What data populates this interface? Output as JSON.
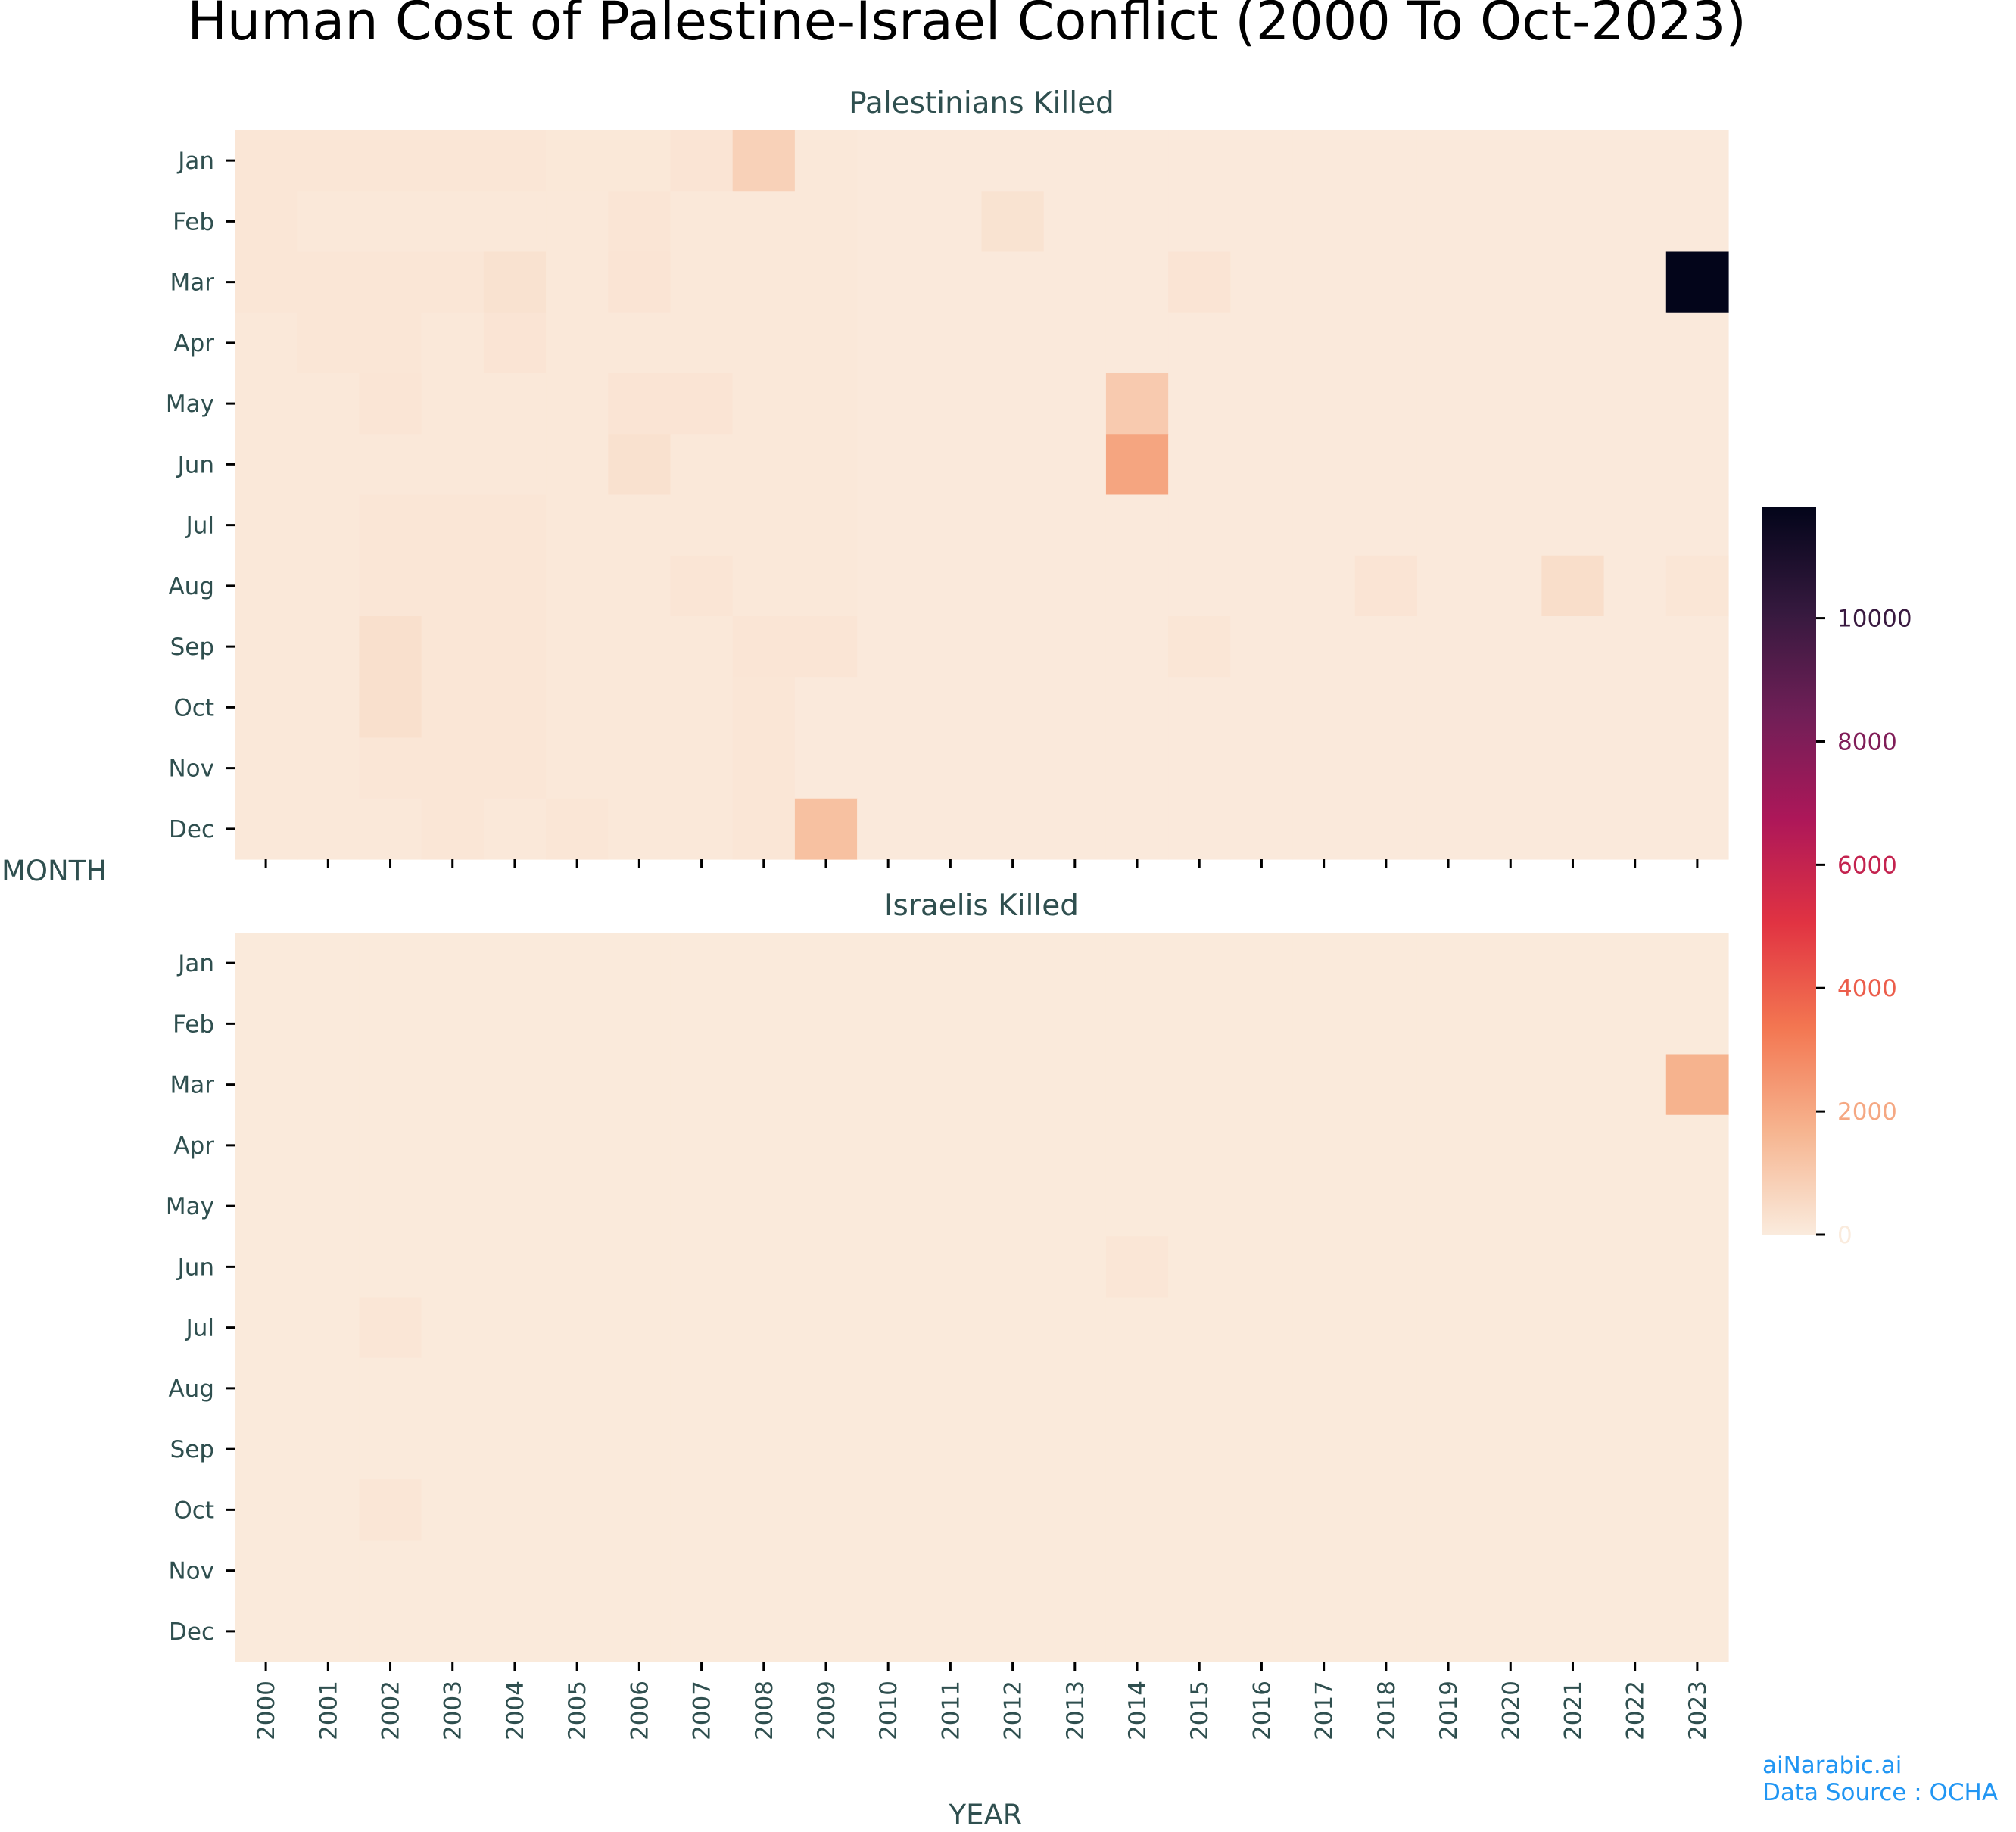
{
  "chart_data": {
    "type": "heatmap",
    "title": "Human Cost of Palestine-Israel Conflict (2000 To Oct-2023)",
    "xlabel": "YEAR",
    "ylabel": "MONTH",
    "x_categories": [
      "2000",
      "2001",
      "2002",
      "2003",
      "2004",
      "2005",
      "2006",
      "2007",
      "2008",
      "2009",
      "2010",
      "2011",
      "2012",
      "2013",
      "2014",
      "2015",
      "2016",
      "2017",
      "2018",
      "2019",
      "2020",
      "2021",
      "2022",
      "2023"
    ],
    "y_categories": [
      "Jan",
      "Feb",
      "Mar",
      "Apr",
      "May",
      "Jun",
      "Jul",
      "Aug",
      "Sep",
      "Oct",
      "Nov",
      "Dec"
    ],
    "panels": [
      {
        "subtitle": "Palestinians Killed",
        "values": [
          [
            150,
            150,
            150,
            150,
            150,
            100,
            100,
            200,
            800,
            80,
            50,
            50,
            50,
            50,
            50,
            50,
            50,
            50,
            50,
            50,
            50,
            50,
            50,
            50
          ],
          [
            150,
            80,
            80,
            80,
            80,
            80,
            180,
            80,
            80,
            80,
            50,
            50,
            250,
            50,
            50,
            50,
            50,
            50,
            50,
            50,
            50,
            50,
            50,
            50
          ],
          [
            150,
            150,
            150,
            150,
            280,
            80,
            200,
            80,
            80,
            80,
            50,
            50,
            50,
            50,
            50,
            200,
            50,
            50,
            50,
            50,
            50,
            50,
            50,
            11800
          ],
          [
            80,
            150,
            150,
            80,
            200,
            80,
            80,
            80,
            80,
            80,
            50,
            50,
            50,
            50,
            50,
            50,
            50,
            50,
            50,
            50,
            50,
            50,
            50,
            50
          ],
          [
            80,
            80,
            180,
            80,
            80,
            80,
            200,
            200,
            80,
            80,
            50,
            50,
            50,
            50,
            1000,
            50,
            50,
            50,
            50,
            50,
            50,
            50,
            50,
            50
          ],
          [
            80,
            80,
            80,
            80,
            80,
            80,
            300,
            80,
            80,
            80,
            50,
            50,
            50,
            50,
            2100,
            50,
            50,
            50,
            50,
            50,
            50,
            50,
            50,
            50
          ],
          [
            80,
            80,
            150,
            150,
            150,
            80,
            80,
            80,
            80,
            80,
            50,
            50,
            50,
            50,
            50,
            50,
            50,
            50,
            50,
            50,
            50,
            50,
            50,
            50
          ],
          [
            80,
            80,
            150,
            150,
            150,
            80,
            80,
            180,
            80,
            80,
            50,
            50,
            50,
            50,
            50,
            50,
            50,
            50,
            200,
            50,
            50,
            400,
            50,
            150
          ],
          [
            80,
            80,
            350,
            150,
            150,
            80,
            80,
            80,
            180,
            180,
            50,
            50,
            50,
            50,
            50,
            150,
            50,
            50,
            50,
            50,
            50,
            50,
            50,
            50
          ],
          [
            80,
            80,
            350,
            150,
            150,
            80,
            80,
            80,
            150,
            50,
            50,
            50,
            50,
            50,
            50,
            50,
            50,
            50,
            50,
            50,
            50,
            50,
            50,
            50
          ],
          [
            80,
            80,
            150,
            150,
            150,
            80,
            80,
            80,
            150,
            50,
            50,
            50,
            50,
            50,
            50,
            50,
            50,
            50,
            50,
            50,
            50,
            50,
            50,
            50
          ],
          [
            80,
            80,
            80,
            150,
            80,
            150,
            80,
            80,
            150,
            1300,
            50,
            50,
            50,
            50,
            50,
            50,
            50,
            50,
            50,
            50,
            50,
            50,
            50,
            50
          ]
        ]
      },
      {
        "subtitle": "Israelis Killed",
        "values": [
          [
            40,
            40,
            40,
            40,
            40,
            40,
            40,
            40,
            40,
            40,
            40,
            40,
            40,
            40,
            40,
            40,
            40,
            40,
            40,
            40,
            40,
            40,
            40,
            40
          ],
          [
            40,
            40,
            40,
            40,
            40,
            40,
            40,
            40,
            40,
            40,
            40,
            40,
            40,
            40,
            40,
            40,
            40,
            40,
            40,
            40,
            40,
            40,
            40,
            40
          ],
          [
            40,
            40,
            40,
            40,
            40,
            40,
            40,
            40,
            40,
            40,
            40,
            40,
            40,
            40,
            40,
            40,
            40,
            40,
            40,
            40,
            40,
            40,
            40,
            1700
          ],
          [
            40,
            40,
            40,
            40,
            40,
            40,
            40,
            40,
            40,
            40,
            40,
            40,
            40,
            40,
            40,
            40,
            40,
            40,
            40,
            40,
            40,
            40,
            40,
            40
          ],
          [
            40,
            40,
            40,
            40,
            40,
            40,
            40,
            40,
            40,
            40,
            40,
            40,
            40,
            40,
            40,
            40,
            40,
            40,
            40,
            40,
            40,
            40,
            40,
            40
          ],
          [
            40,
            40,
            40,
            40,
            40,
            40,
            40,
            40,
            40,
            40,
            40,
            40,
            40,
            40,
            150,
            40,
            40,
            40,
            40,
            40,
            40,
            40,
            40,
            40
          ],
          [
            40,
            40,
            150,
            40,
            40,
            40,
            40,
            40,
            40,
            40,
            40,
            40,
            40,
            40,
            40,
            40,
            40,
            40,
            40,
            40,
            40,
            40,
            40,
            40
          ],
          [
            40,
            40,
            40,
            40,
            40,
            40,
            40,
            40,
            40,
            40,
            40,
            40,
            40,
            40,
            40,
            40,
            40,
            40,
            40,
            40,
            40,
            40,
            40,
            40
          ],
          [
            40,
            40,
            40,
            40,
            40,
            40,
            40,
            40,
            40,
            40,
            40,
            40,
            40,
            40,
            40,
            40,
            40,
            40,
            40,
            40,
            40,
            40,
            40,
            40
          ],
          [
            40,
            40,
            150,
            40,
            40,
            40,
            40,
            40,
            40,
            40,
            40,
            40,
            40,
            40,
            40,
            40,
            40,
            40,
            40,
            40,
            40,
            40,
            40,
            40
          ],
          [
            40,
            40,
            40,
            40,
            40,
            40,
            40,
            40,
            40,
            40,
            40,
            40,
            40,
            40,
            40,
            40,
            40,
            40,
            40,
            40,
            40,
            40,
            40,
            40
          ],
          [
            40,
            40,
            40,
            40,
            40,
            40,
            40,
            40,
            40,
            40,
            40,
            40,
            40,
            40,
            40,
            40,
            40,
            40,
            40,
            40,
            40,
            40,
            40,
            40
          ]
        ]
      }
    ],
    "colorbar": {
      "range": [
        0,
        11800
      ],
      "ticks": [
        0,
        2000,
        4000,
        6000,
        8000,
        10000
      ],
      "colormap": "rocket_r",
      "colors": [
        "#faebdd",
        "#f6b48f",
        "#f37651",
        "#e13342",
        "#ad1759",
        "#701f57",
        "#35193e",
        "#03051a"
      ]
    }
  },
  "footer": {
    "line1": "aiNarabic.ai",
    "line2": "Data Source : OCHA"
  }
}
